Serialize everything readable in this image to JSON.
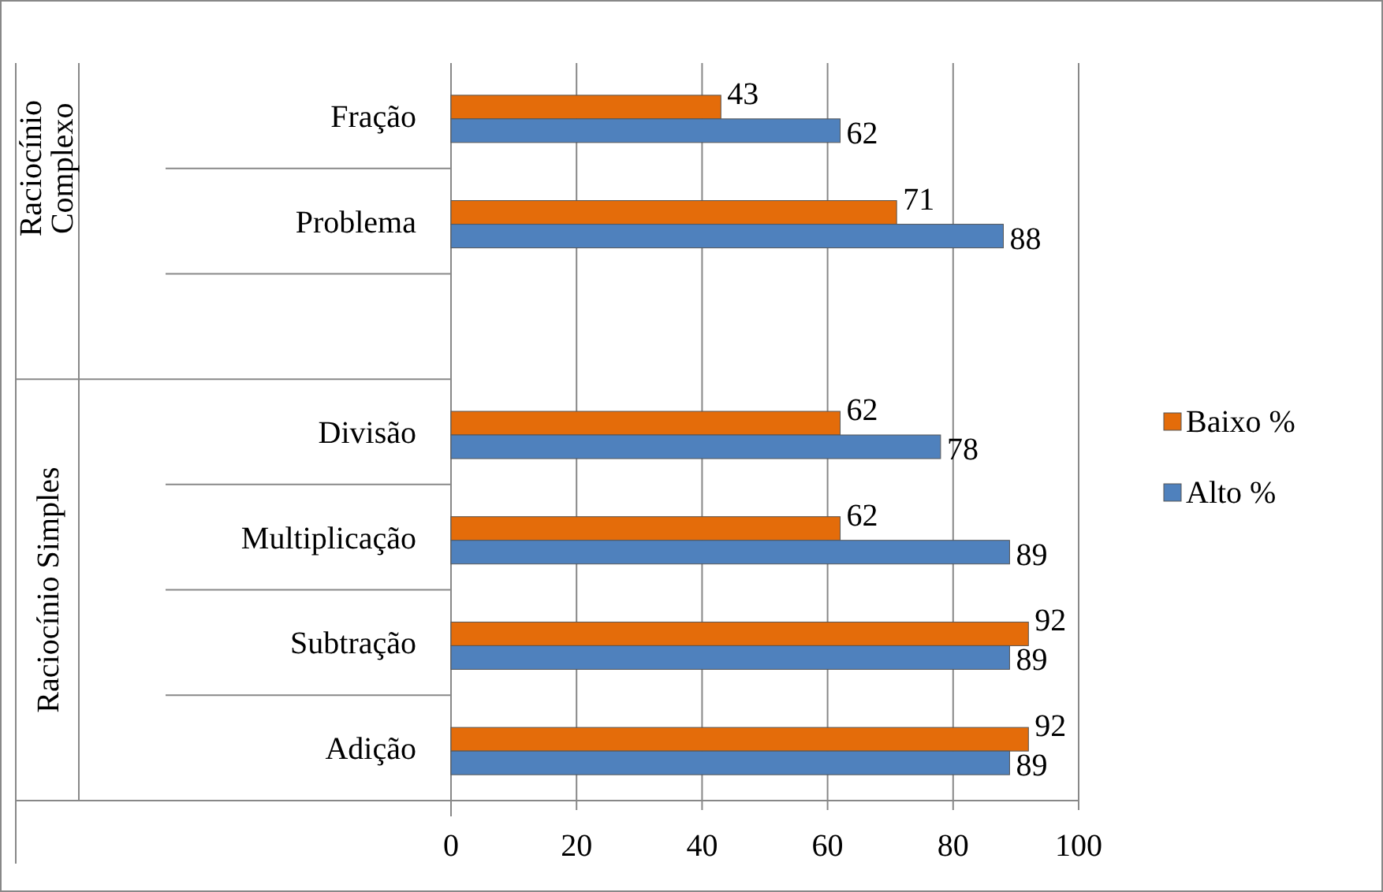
{
  "chart_data": {
    "type": "bar",
    "orientation": "horizontal",
    "categories": [
      "Fração",
      "Problema",
      null,
      "Divisão",
      "Multiplicação",
      "Subtração",
      "Adição"
    ],
    "series": [
      {
        "name": "Baixo %",
        "color": "#e46c0a",
        "values": [
          43,
          71,
          null,
          62,
          62,
          92,
          92
        ]
      },
      {
        "name": "Alto %",
        "color": "#4f81bd",
        "values": [
          62,
          88,
          null,
          78,
          89,
          89,
          89
        ]
      }
    ],
    "xlim": [
      0,
      100
    ],
    "xticks": [
      0,
      20,
      40,
      60,
      80,
      100
    ],
    "grid": "x",
    "legend": "right",
    "data_labels": true,
    "annotations": [
      "Raciocínio Complexo",
      "Raciocínio Simples"
    ]
  }
}
